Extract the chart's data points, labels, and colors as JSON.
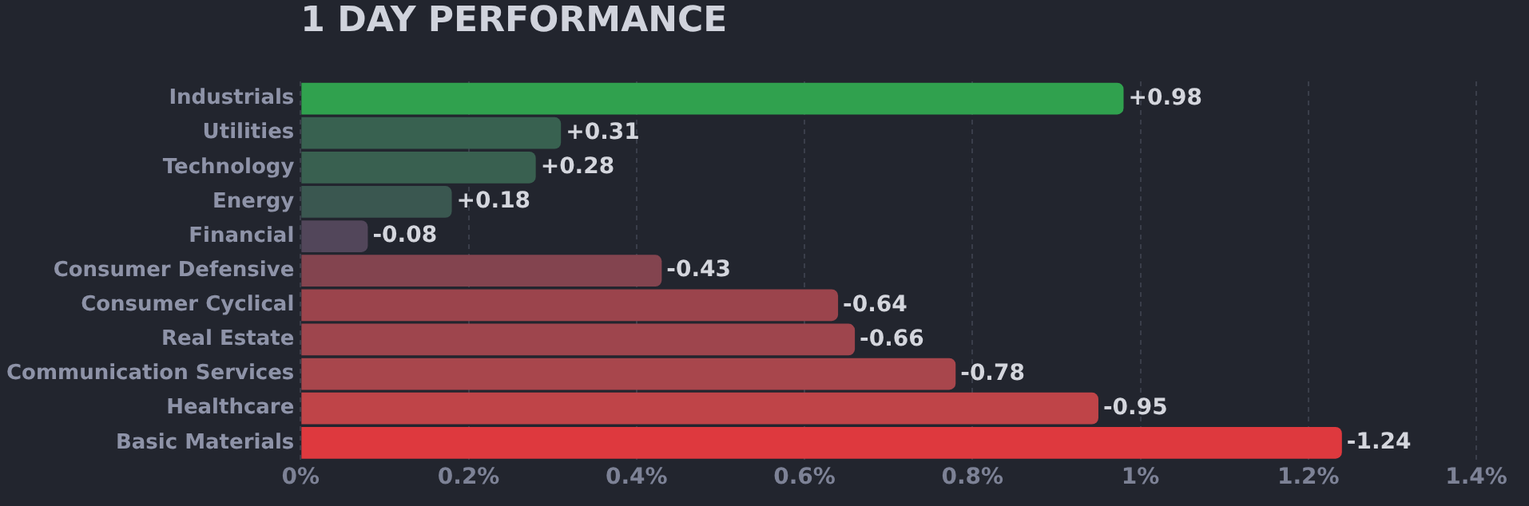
{
  "chart_data": {
    "type": "bar",
    "orientation": "horizontal",
    "title": "1 DAY PERFORMANCE",
    "categories": [
      "Industrials",
      "Utilities",
      "Technology",
      "Energy",
      "Financial",
      "Consumer Defensive",
      "Consumer Cyclical",
      "Real Estate",
      "Communication Services",
      "Healthcare",
      "Basic Materials"
    ],
    "values": [
      0.98,
      0.31,
      0.28,
      0.18,
      -0.08,
      -0.43,
      -0.64,
      -0.66,
      -0.78,
      -0.95,
      -1.24
    ],
    "base": [
      0,
      0,
      0,
      0,
      0.08,
      0.43,
      0.64,
      0.66,
      0.78,
      0.95,
      1.24
    ],
    "value_labels": [
      "+0.98",
      "+0.31",
      "+0.28",
      "+0.18",
      "-0.08",
      "-0.43",
      "-0.64",
      "-0.66",
      "-0.78",
      "-0.95",
      "-1.24"
    ],
    "colors": [
      "#30a14e",
      "#386150",
      "#396050",
      "#3a5750",
      "#52465a",
      "#83444f",
      "#9b444c",
      "#9e454d",
      "#a8464c",
      "#bf4448",
      "#de393e"
    ],
    "xlim": [
      0,
      1.4
    ],
    "xticks": [
      {
        "value": 0,
        "label": "0%"
      },
      {
        "value": 0.2,
        "label": "0.2%"
      },
      {
        "value": 0.4,
        "label": "0.4%"
      },
      {
        "value": 0.6,
        "label": "0.6%"
      },
      {
        "value": 0.8,
        "label": "0.8%"
      },
      {
        "value": 1,
        "label": "1%"
      },
      {
        "value": 1.2,
        "label": "1.2%"
      },
      {
        "value": 1.4,
        "label": "1.4%"
      }
    ],
    "grid": "x",
    "legend": false
  }
}
